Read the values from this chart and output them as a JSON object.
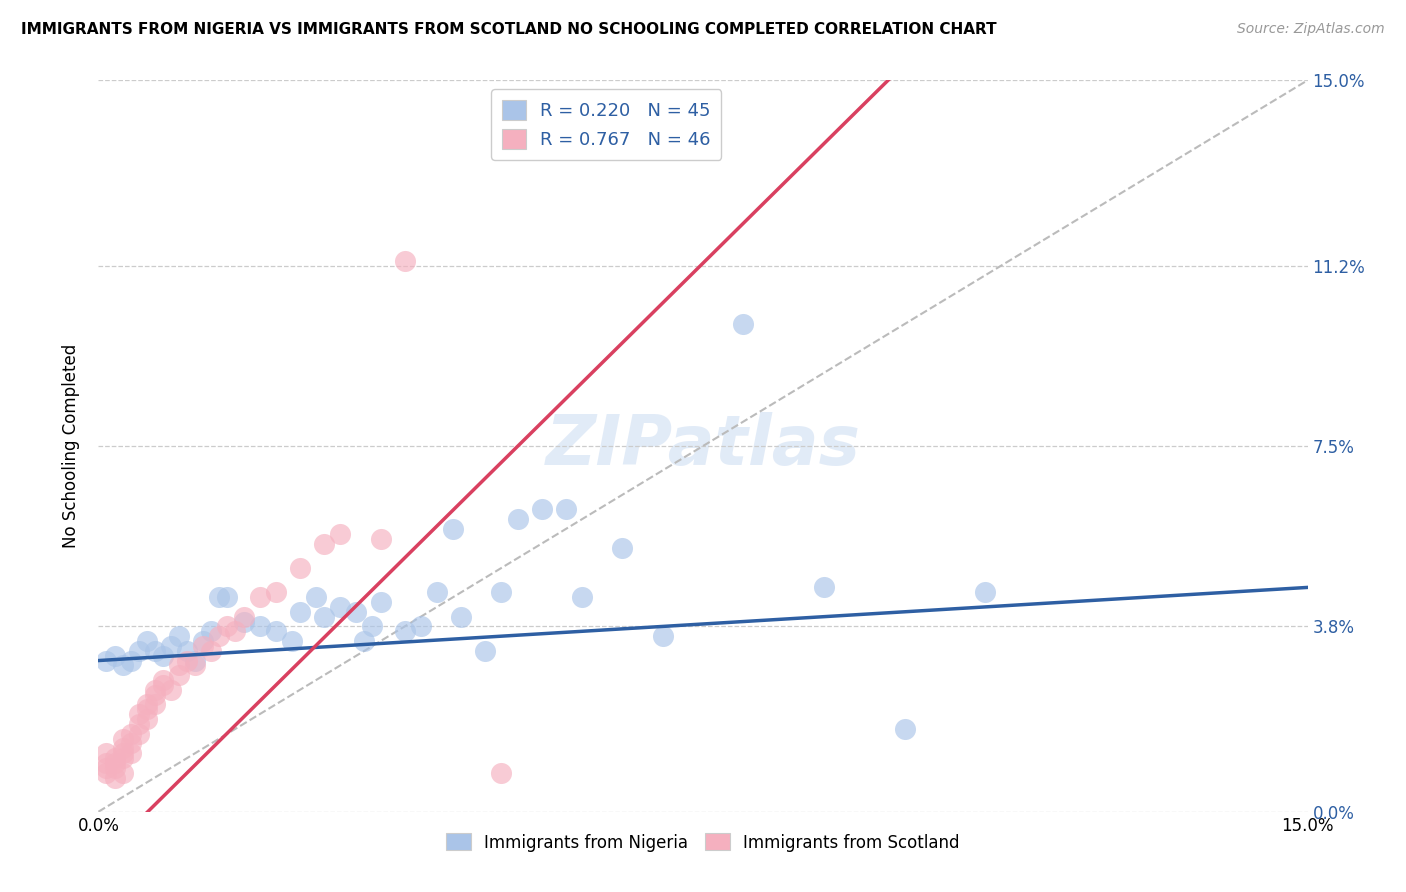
{
  "title": "IMMIGRANTS FROM NIGERIA VS IMMIGRANTS FROM SCOTLAND NO SCHOOLING COMPLETED CORRELATION CHART",
  "source": "Source: ZipAtlas.com",
  "ylabel": "No Schooling Completed",
  "xlim": [
    0.0,
    0.15
  ],
  "ylim": [
    0.0,
    0.15
  ],
  "xtick_positions": [
    0.0,
    0.05,
    0.1,
    0.15
  ],
  "xtick_labels": [
    "0.0%",
    "",
    "",
    "15.0%"
  ],
  "ytick_positions": [
    0.0,
    0.038,
    0.075,
    0.112,
    0.15
  ],
  "ytick_labels_right": [
    "0.0%",
    "3.8%",
    "7.5%",
    "11.2%",
    "15.0%"
  ],
  "nigeria_scatter_color": "#aac4e8",
  "nigeria_line_color": "#2e5fa3",
  "scotland_scatter_color": "#f5b0bf",
  "scotland_line_color": "#d94060",
  "r_nigeria": 0.22,
  "n_nigeria": 45,
  "r_scotland": 0.767,
  "n_scotland": 46,
  "watermark": "ZIPatlas",
  "nigeria_points": [
    [
      0.001,
      0.031
    ],
    [
      0.002,
      0.032
    ],
    [
      0.003,
      0.03
    ],
    [
      0.004,
      0.031
    ],
    [
      0.005,
      0.033
    ],
    [
      0.006,
      0.035
    ],
    [
      0.007,
      0.033
    ],
    [
      0.008,
      0.032
    ],
    [
      0.009,
      0.034
    ],
    [
      0.01,
      0.036
    ],
    [
      0.011,
      0.033
    ],
    [
      0.012,
      0.031
    ],
    [
      0.013,
      0.035
    ],
    [
      0.014,
      0.037
    ],
    [
      0.015,
      0.044
    ],
    [
      0.016,
      0.044
    ],
    [
      0.018,
      0.039
    ],
    [
      0.02,
      0.038
    ],
    [
      0.022,
      0.037
    ],
    [
      0.024,
      0.035
    ],
    [
      0.025,
      0.041
    ],
    [
      0.027,
      0.044
    ],
    [
      0.028,
      0.04
    ],
    [
      0.03,
      0.042
    ],
    [
      0.032,
      0.041
    ],
    [
      0.033,
      0.035
    ],
    [
      0.034,
      0.038
    ],
    [
      0.035,
      0.043
    ],
    [
      0.038,
      0.037
    ],
    [
      0.04,
      0.038
    ],
    [
      0.042,
      0.045
    ],
    [
      0.044,
      0.058
    ],
    [
      0.045,
      0.04
    ],
    [
      0.048,
      0.033
    ],
    [
      0.05,
      0.045
    ],
    [
      0.052,
      0.06
    ],
    [
      0.055,
      0.062
    ],
    [
      0.058,
      0.062
    ],
    [
      0.06,
      0.044
    ],
    [
      0.065,
      0.054
    ],
    [
      0.07,
      0.036
    ],
    [
      0.08,
      0.1
    ],
    [
      0.09,
      0.046
    ],
    [
      0.1,
      0.017
    ],
    [
      0.11,
      0.045
    ]
  ],
  "scotland_points": [
    [
      0.001,
      0.009
    ],
    [
      0.001,
      0.008
    ],
    [
      0.001,
      0.01
    ],
    [
      0.001,
      0.012
    ],
    [
      0.002,
      0.01
    ],
    [
      0.002,
      0.011
    ],
    [
      0.002,
      0.009
    ],
    [
      0.002,
      0.007
    ],
    [
      0.003,
      0.012
    ],
    [
      0.003,
      0.011
    ],
    [
      0.003,
      0.013
    ],
    [
      0.003,
      0.015
    ],
    [
      0.003,
      0.008
    ],
    [
      0.004,
      0.014
    ],
    [
      0.004,
      0.016
    ],
    [
      0.004,
      0.012
    ],
    [
      0.005,
      0.02
    ],
    [
      0.005,
      0.016
    ],
    [
      0.005,
      0.018
    ],
    [
      0.006,
      0.019
    ],
    [
      0.006,
      0.021
    ],
    [
      0.006,
      0.022
    ],
    [
      0.007,
      0.024
    ],
    [
      0.007,
      0.025
    ],
    [
      0.007,
      0.022
    ],
    [
      0.008,
      0.026
    ],
    [
      0.008,
      0.027
    ],
    [
      0.009,
      0.025
    ],
    [
      0.01,
      0.03
    ],
    [
      0.01,
      0.028
    ],
    [
      0.011,
      0.031
    ],
    [
      0.012,
      0.03
    ],
    [
      0.013,
      0.034
    ],
    [
      0.014,
      0.033
    ],
    [
      0.015,
      0.036
    ],
    [
      0.016,
      0.038
    ],
    [
      0.017,
      0.037
    ],
    [
      0.018,
      0.04
    ],
    [
      0.02,
      0.044
    ],
    [
      0.022,
      0.045
    ],
    [
      0.025,
      0.05
    ],
    [
      0.028,
      0.055
    ],
    [
      0.03,
      0.057
    ],
    [
      0.035,
      0.056
    ],
    [
      0.038,
      0.113
    ],
    [
      0.05,
      0.008
    ]
  ],
  "bottom_legend_labels": [
    "Immigrants from Nigeria",
    "Immigrants from Scotland"
  ]
}
